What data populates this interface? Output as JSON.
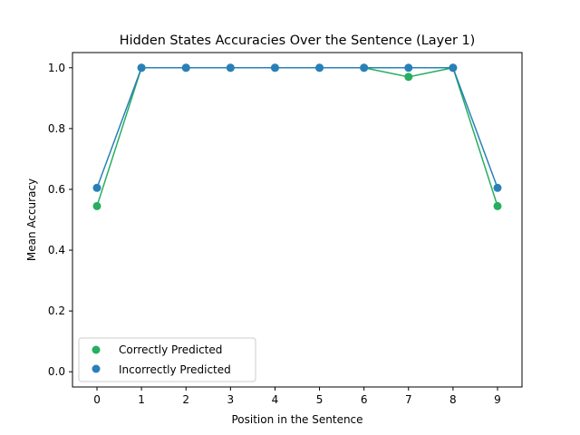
{
  "chart_data": {
    "type": "line",
    "title": "Hidden States Accuracies Over the Sentence (Layer  1)",
    "xlabel": "Position in the Sentence",
    "ylabel": "Mean Accuracy",
    "x": [
      0,
      1,
      2,
      3,
      4,
      5,
      6,
      7,
      8,
      9
    ],
    "xlim": [
      -0.55,
      9.55
    ],
    "ylim": [
      -0.05,
      1.05
    ],
    "xticks": [
      "0",
      "1",
      "2",
      "3",
      "4",
      "5",
      "6",
      "7",
      "8",
      "9"
    ],
    "yticks": [
      "0.0",
      "0.2",
      "0.4",
      "0.6",
      "0.8",
      "1.0"
    ],
    "ytick_values": [
      0.0,
      0.2,
      0.4,
      0.6,
      0.8,
      1.0
    ],
    "grid": false,
    "legend_position": "lower-left",
    "series": [
      {
        "name": "Correctly Predicted",
        "color": "#27ae60",
        "values": [
          0.545,
          1.0,
          1.0,
          1.0,
          1.0,
          1.0,
          1.0,
          0.97,
          1.0,
          0.545
        ]
      },
      {
        "name": "Incorrectly Predicted",
        "color": "#2980b9",
        "values": [
          0.605,
          1.0,
          1.0,
          1.0,
          1.0,
          1.0,
          1.0,
          1.0,
          1.0,
          0.605
        ]
      }
    ]
  }
}
